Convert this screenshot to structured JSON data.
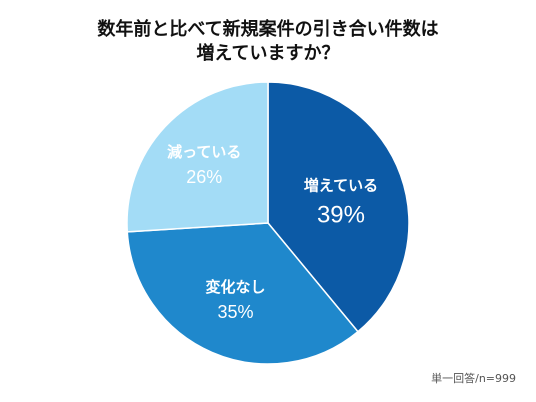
{
  "title": {
    "line1": "数年前と比べて新規案件の引き合い件数は",
    "line2": "増えていますか？"
  },
  "footnote": "単一回答/n=999",
  "chart_data": {
    "type": "pie",
    "title": "数年前と比べて新規案件の引き合い件数は増えていますか？",
    "slices": [
      {
        "label": "増えている",
        "value": 39,
        "value_label": "39%",
        "color": "#0c5aa6",
        "text_color": "#ffffff"
      },
      {
        "label": "変化なし",
        "value": 35,
        "value_label": "35%",
        "color": "#1f88cc",
        "text_color": "#ffffff"
      },
      {
        "label": "減っている",
        "value": 26,
        "value_label": "26%",
        "color": "#a3dcf6",
        "text_color": "#ffffff"
      }
    ],
    "start": "12 o'clock, clockwise",
    "legend": "none (labels inside slices)"
  }
}
